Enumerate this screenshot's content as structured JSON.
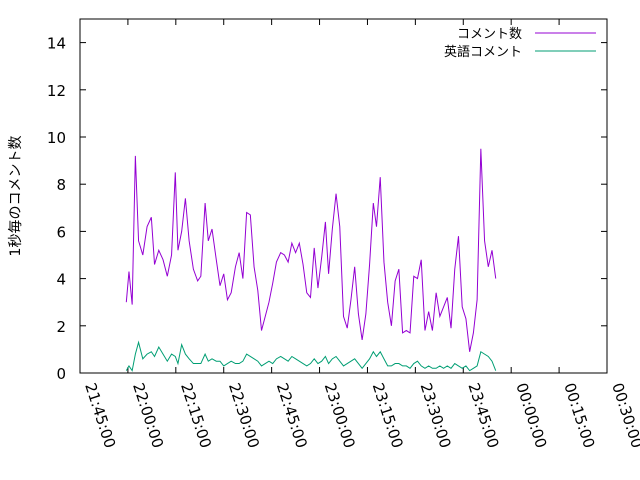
{
  "chart_data": {
    "type": "line",
    "ylabel": "1秒毎のコメント数",
    "xlabel": "",
    "title": "",
    "ylim": [
      0,
      15
    ],
    "y_ticks": [
      0,
      2,
      4,
      6,
      8,
      10,
      12,
      14
    ],
    "x_tick_labels": [
      "21:45:00",
      "22:00:00",
      "22:15:00",
      "22:30:00",
      "22:45:00",
      "23:00:00",
      "23:15:00",
      "23:30:00",
      "23:45:00",
      "00:00:00",
      "00:15:00",
      "00:30:00"
    ],
    "grid": false,
    "legend_position": "top-right",
    "colors": {
      "comments": "#9400d3",
      "english": "#009e73"
    },
    "series": [
      {
        "name": "コメント数",
        "key": "comments",
        "points": [
          [
            "21:59:30",
            3.0
          ],
          [
            "22:00:20",
            4.3
          ],
          [
            "22:01:20",
            2.9
          ],
          [
            "22:02:20",
            9.2
          ],
          [
            "22:03:20",
            5.6
          ],
          [
            "22:04:40",
            5.0
          ],
          [
            "22:06:00",
            6.2
          ],
          [
            "22:07:20",
            6.6
          ],
          [
            "22:08:20",
            4.6
          ],
          [
            "22:09:40",
            5.2
          ],
          [
            "22:11:00",
            4.8
          ],
          [
            "22:12:20",
            4.1
          ],
          [
            "22:13:40",
            5.0
          ],
          [
            "22:14:50",
            8.5
          ],
          [
            "22:15:40",
            5.2
          ],
          [
            "22:16:50",
            6.0
          ],
          [
            "22:18:00",
            7.4
          ],
          [
            "22:19:10",
            5.6
          ],
          [
            "22:20:30",
            4.4
          ],
          [
            "22:21:50",
            3.9
          ],
          [
            "22:22:50",
            4.1
          ],
          [
            "22:24:10",
            7.2
          ],
          [
            "22:25:10",
            5.6
          ],
          [
            "22:26:20",
            6.1
          ],
          [
            "22:27:40",
            4.8
          ],
          [
            "22:28:50",
            3.7
          ],
          [
            "22:30:00",
            4.2
          ],
          [
            "22:31:10",
            3.1
          ],
          [
            "22:32:20",
            3.4
          ],
          [
            "22:33:40",
            4.5
          ],
          [
            "22:34:50",
            5.1
          ],
          [
            "22:36:00",
            4.0
          ],
          [
            "22:37:10",
            6.8
          ],
          [
            "22:38:20",
            6.7
          ],
          [
            "22:39:30",
            4.5
          ],
          [
            "22:40:40",
            3.5
          ],
          [
            "22:41:50",
            1.8
          ],
          [
            "22:43:00",
            2.4
          ],
          [
            "22:44:10",
            3.0
          ],
          [
            "22:45:20",
            3.8
          ],
          [
            "22:46:30",
            4.7
          ],
          [
            "22:47:50",
            5.1
          ],
          [
            "22:49:00",
            5.0
          ],
          [
            "22:50:10",
            4.7
          ],
          [
            "22:51:20",
            5.5
          ],
          [
            "22:52:30",
            5.1
          ],
          [
            "22:53:40",
            5.5
          ],
          [
            "22:54:50",
            4.6
          ],
          [
            "22:56:00",
            3.4
          ],
          [
            "22:57:10",
            3.2
          ],
          [
            "22:58:20",
            5.3
          ],
          [
            "22:59:30",
            3.6
          ],
          [
            "23:00:40",
            4.9
          ],
          [
            "23:01:50",
            6.4
          ],
          [
            "23:02:50",
            4.2
          ],
          [
            "23:04:00",
            6.1
          ],
          [
            "23:05:10",
            7.6
          ],
          [
            "23:06:20",
            6.2
          ],
          [
            "23:07:30",
            2.4
          ],
          [
            "23:08:40",
            1.9
          ],
          [
            "23:09:50",
            3.1
          ],
          [
            "23:11:00",
            4.5
          ],
          [
            "23:12:10",
            2.5
          ],
          [
            "23:13:20",
            1.4
          ],
          [
            "23:14:30",
            2.5
          ],
          [
            "23:15:40",
            4.6
          ],
          [
            "23:16:50",
            7.2
          ],
          [
            "23:17:50",
            6.2
          ],
          [
            "23:19:00",
            8.3
          ],
          [
            "23:20:10",
            4.7
          ],
          [
            "23:21:20",
            3.0
          ],
          [
            "23:22:30",
            2.0
          ],
          [
            "23:23:40",
            3.9
          ],
          [
            "23:24:50",
            4.4
          ],
          [
            "23:26:00",
            1.7
          ],
          [
            "23:27:10",
            1.8
          ],
          [
            "23:28:20",
            1.7
          ],
          [
            "23:29:30",
            4.1
          ],
          [
            "23:30:40",
            4.0
          ],
          [
            "23:31:50",
            4.8
          ],
          [
            "23:33:00",
            1.8
          ],
          [
            "23:34:10",
            2.6
          ],
          [
            "23:35:20",
            1.8
          ],
          [
            "23:36:30",
            3.4
          ],
          [
            "23:37:40",
            2.4
          ],
          [
            "23:38:50",
            2.8
          ],
          [
            "23:40:00",
            3.2
          ],
          [
            "23:41:10",
            1.9
          ],
          [
            "23:42:20",
            4.4
          ],
          [
            "23:43:30",
            5.8
          ],
          [
            "23:44:40",
            2.8
          ],
          [
            "23:45:50",
            2.3
          ],
          [
            "23:47:00",
            0.9
          ],
          [
            "23:48:10",
            1.7
          ],
          [
            "23:49:20",
            3.1
          ],
          [
            "23:50:30",
            9.5
          ],
          [
            "23:51:40",
            5.6
          ],
          [
            "23:52:50",
            4.5
          ],
          [
            "23:54:00",
            5.2
          ],
          [
            "23:55:10",
            4.0
          ]
        ]
      },
      {
        "name": "英語コメント",
        "key": "english",
        "points": [
          [
            "21:59:30",
            0.1
          ],
          [
            "22:00:20",
            0.3
          ],
          [
            "22:01:20",
            0.1
          ],
          [
            "22:02:20",
            0.8
          ],
          [
            "22:03:20",
            1.3
          ],
          [
            "22:04:40",
            0.6
          ],
          [
            "22:06:00",
            0.8
          ],
          [
            "22:07:20",
            0.9
          ],
          [
            "22:08:20",
            0.7
          ],
          [
            "22:09:40",
            1.1
          ],
          [
            "22:11:00",
            0.8
          ],
          [
            "22:12:20",
            0.5
          ],
          [
            "22:13:40",
            0.8
          ],
          [
            "22:14:50",
            0.7
          ],
          [
            "22:15:40",
            0.4
          ],
          [
            "22:16:50",
            1.2
          ],
          [
            "22:18:00",
            0.8
          ],
          [
            "22:19:10",
            0.6
          ],
          [
            "22:20:30",
            0.4
          ],
          [
            "22:21:50",
            0.4
          ],
          [
            "22:22:50",
            0.4
          ],
          [
            "22:24:10",
            0.8
          ],
          [
            "22:25:10",
            0.5
          ],
          [
            "22:26:20",
            0.6
          ],
          [
            "22:27:40",
            0.5
          ],
          [
            "22:28:50",
            0.5
          ],
          [
            "22:30:00",
            0.3
          ],
          [
            "22:31:10",
            0.4
          ],
          [
            "22:32:20",
            0.5
          ],
          [
            "22:33:40",
            0.4
          ],
          [
            "22:34:50",
            0.4
          ],
          [
            "22:36:00",
            0.5
          ],
          [
            "22:37:10",
            0.8
          ],
          [
            "22:38:20",
            0.7
          ],
          [
            "22:39:30",
            0.6
          ],
          [
            "22:40:40",
            0.5
          ],
          [
            "22:41:50",
            0.3
          ],
          [
            "22:43:00",
            0.4
          ],
          [
            "22:44:10",
            0.5
          ],
          [
            "22:45:20",
            0.4
          ],
          [
            "22:46:30",
            0.6
          ],
          [
            "22:47:50",
            0.7
          ],
          [
            "22:49:00",
            0.6
          ],
          [
            "22:50:10",
            0.5
          ],
          [
            "22:51:20",
            0.7
          ],
          [
            "22:52:30",
            0.6
          ],
          [
            "22:53:40",
            0.5
          ],
          [
            "22:54:50",
            0.4
          ],
          [
            "22:56:00",
            0.3
          ],
          [
            "22:57:10",
            0.4
          ],
          [
            "22:58:20",
            0.6
          ],
          [
            "22:59:30",
            0.4
          ],
          [
            "23:00:40",
            0.5
          ],
          [
            "23:01:50",
            0.7
          ],
          [
            "23:02:50",
            0.4
          ],
          [
            "23:04:00",
            0.6
          ],
          [
            "23:05:10",
            0.7
          ],
          [
            "23:06:20",
            0.5
          ],
          [
            "23:07:30",
            0.3
          ],
          [
            "23:08:40",
            0.4
          ],
          [
            "23:09:50",
            0.5
          ],
          [
            "23:11:00",
            0.6
          ],
          [
            "23:12:10",
            0.4
          ],
          [
            "23:13:20",
            0.2
          ],
          [
            "23:14:30",
            0.4
          ],
          [
            "23:15:40",
            0.6
          ],
          [
            "23:16:50",
            0.9
          ],
          [
            "23:17:50",
            0.7
          ],
          [
            "23:19:00",
            0.9
          ],
          [
            "23:20:10",
            0.6
          ],
          [
            "23:21:20",
            0.3
          ],
          [
            "23:22:30",
            0.3
          ],
          [
            "23:23:40",
            0.4
          ],
          [
            "23:24:50",
            0.4
          ],
          [
            "23:26:00",
            0.3
          ],
          [
            "23:27:10",
            0.3
          ],
          [
            "23:28:20",
            0.2
          ],
          [
            "23:29:30",
            0.4
          ],
          [
            "23:30:40",
            0.5
          ],
          [
            "23:31:50",
            0.3
          ],
          [
            "23:33:00",
            0.2
          ],
          [
            "23:34:10",
            0.3
          ],
          [
            "23:35:20",
            0.2
          ],
          [
            "23:36:30",
            0.2
          ],
          [
            "23:37:40",
            0.3
          ],
          [
            "23:38:50",
            0.2
          ],
          [
            "23:40:00",
            0.3
          ],
          [
            "23:41:10",
            0.2
          ],
          [
            "23:42:20",
            0.4
          ],
          [
            "23:43:30",
            0.3
          ],
          [
            "23:44:40",
            0.2
          ],
          [
            "23:45:50",
            0.3
          ],
          [
            "23:47:00",
            0.1
          ],
          [
            "23:48:10",
            0.2
          ],
          [
            "23:49:20",
            0.3
          ],
          [
            "23:50:30",
            0.9
          ],
          [
            "23:51:40",
            0.8
          ],
          [
            "23:52:50",
            0.7
          ],
          [
            "23:54:00",
            0.5
          ],
          [
            "23:55:10",
            0.1
          ]
        ]
      }
    ]
  }
}
